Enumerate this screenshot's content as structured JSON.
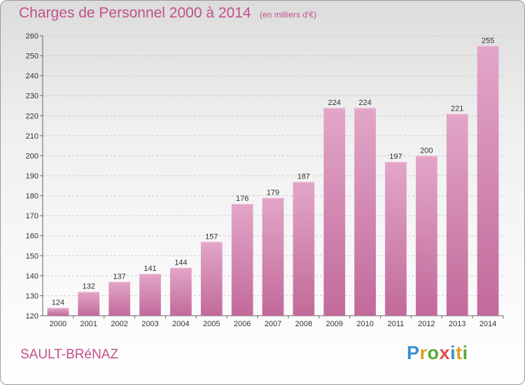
{
  "header": {
    "title": "Charges de Personnel 2000 à 2014",
    "subtitle": "(en milliers d'€)"
  },
  "footer": {
    "city": "SAULT-BRéNAZ",
    "logo_text": "Proxiti",
    "logo_colors": [
      "#3a8fd0",
      "#e0a020",
      "#5aa83a",
      "#e05050",
      "#3a8fd0",
      "#e0a020",
      "#5aa83a"
    ]
  },
  "colors": {
    "bar": "#c26a9a",
    "bar_light": "#e2a6c8",
    "grid": "#c8c8c8",
    "accent": "#c0508a"
  },
  "chart_data": {
    "type": "bar",
    "categories": [
      "2000",
      "2001",
      "2002",
      "2003",
      "2004",
      "2005",
      "2006",
      "2007",
      "2008",
      "2009",
      "2010",
      "2011",
      "2012",
      "2013",
      "2014"
    ],
    "values": [
      124,
      132,
      137,
      141,
      144,
      157,
      176,
      179,
      187,
      224,
      224,
      197,
      200,
      221,
      255
    ],
    "title": "Charges de Personnel 2000 à 2014",
    "subtitle": "(en milliers d'€)",
    "xlabel": "",
    "ylabel": "",
    "ylim": [
      120,
      260
    ],
    "yticks": [
      120,
      130,
      140,
      150,
      160,
      170,
      180,
      190,
      200,
      210,
      220,
      230,
      240,
      250,
      260
    ],
    "grid": true,
    "data_labels": true
  }
}
